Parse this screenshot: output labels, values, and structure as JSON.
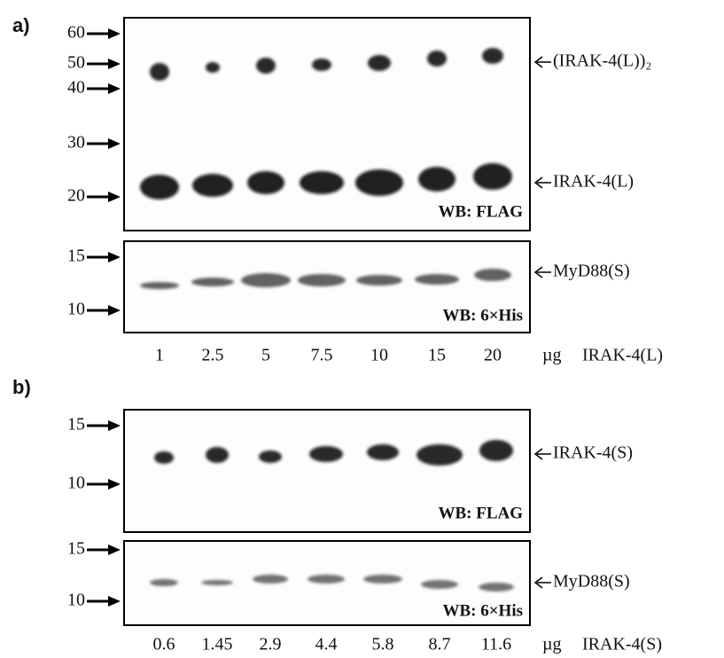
{
  "panels": [
    {
      "label": "a)",
      "blots": [
        {
          "markers": [
            60,
            50,
            40,
            30,
            20
          ],
          "bands": [
            "(IRAK-4(L))₂",
            "IRAK-4(L)"
          ],
          "wb": "WB: FLAG"
        },
        {
          "markers": [
            15,
            10
          ],
          "bands": [
            "MyD88(S)"
          ],
          "wb": "WB: 6×His"
        }
      ],
      "lanes": [
        "1",
        "2.5",
        "5",
        "7.5",
        "10",
        "15",
        "20"
      ],
      "unit": "µg",
      "protein": "IRAK-4(L)"
    },
    {
      "label": "b)",
      "blots": [
        {
          "markers": [
            15,
            10
          ],
          "bands": [
            "IRAK-4(S)"
          ],
          "wb": "WB: FLAG"
        },
        {
          "markers": [
            15,
            10
          ],
          "bands": [
            "MyD88(S)"
          ],
          "wb": "WB: 6×His"
        }
      ],
      "lanes": [
        "0.6",
        "1.45",
        "2.9",
        "4.4",
        "5.8",
        "8.7",
        "11.6"
      ],
      "unit": "µg",
      "protein": "IRAK-4(S)"
    }
  ]
}
